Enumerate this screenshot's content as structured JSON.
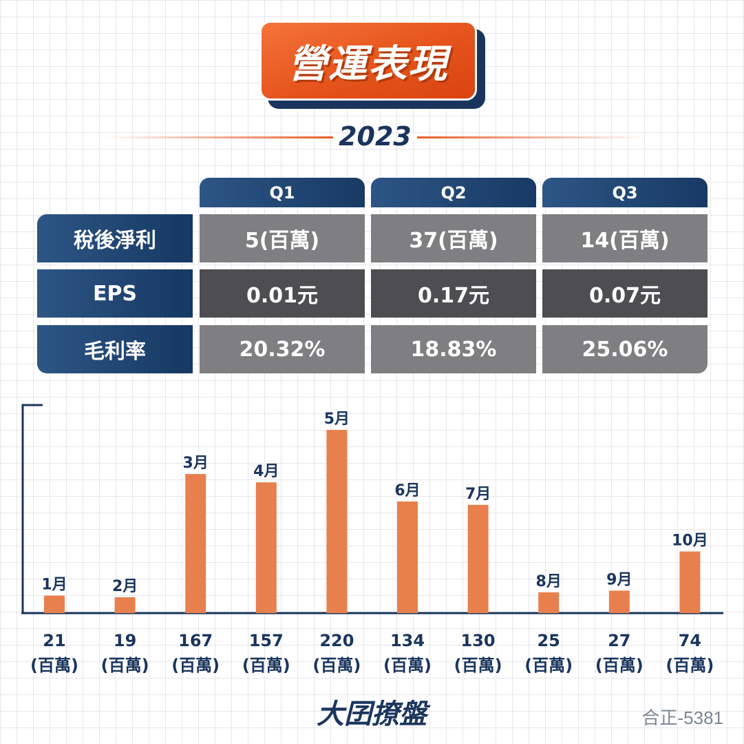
{
  "header": {
    "title": "營運表現",
    "year": "2023"
  },
  "table": {
    "quarters": [
      "Q1",
      "Q2",
      "Q3"
    ],
    "rows": [
      {
        "label": "稅後淨利",
        "values": [
          "5(百萬)",
          "37(百萬)",
          "14(百萬)"
        ]
      },
      {
        "label": "EPS",
        "values": [
          "0.01元",
          "0.17元",
          "0.07元"
        ]
      },
      {
        "label": "毛利率",
        "values": [
          "20.32%",
          "18.83%",
          "25.06%"
        ]
      }
    ]
  },
  "chart_data": {
    "type": "bar",
    "categories": [
      "1月",
      "2月",
      "3月",
      "4月",
      "5月",
      "6月",
      "7月",
      "8月",
      "9月",
      "10月"
    ],
    "values": [
      21,
      19,
      167,
      157,
      220,
      134,
      130,
      25,
      27,
      74
    ],
    "unit": "(百萬)",
    "ylim": [
      0,
      220
    ],
    "grid": false,
    "colors": {
      "bar": "#e8804e",
      "axis": "#1a355d",
      "label": "#1a355d"
    }
  },
  "footer": {
    "brand": "大囝撩盤",
    "stock_code": "合正-5381"
  }
}
